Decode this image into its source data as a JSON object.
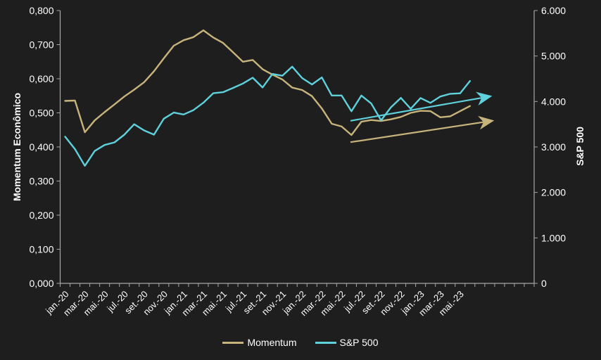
{
  "colors": {
    "background": "#1E1E1E",
    "text": "#FFFFFF",
    "axis_line": "#A6A6A6",
    "momentum_line": "#C7B47C",
    "sp500_line": "#5FD1DC"
  },
  "chart_data": {
    "type": "line",
    "title": "",
    "x": [
      "jan.-20",
      "fev.-20",
      "mar.-20",
      "abr.-20",
      "mai.-20",
      "jun.-20",
      "jul.-20",
      "ago.-20",
      "set.-20",
      "out.-20",
      "nov.-20",
      "dez.-20",
      "jan.-21",
      "fev.-21",
      "mar.-21",
      "abr.-21",
      "mai.-21",
      "jun.-21",
      "jul.-21",
      "ago.-21",
      "set.-21",
      "out.-21",
      "nov.-21",
      "dez.-21",
      "jan.-22",
      "fev.-22",
      "mar.-22",
      "abr.-22",
      "mai.-22",
      "jun.-22",
      "jul.-22",
      "ago.-22",
      "set.-22",
      "out.-22",
      "nov.-22",
      "dez.-22",
      "jan.-23",
      "fev.-23",
      "mar.-23",
      "abr.-23",
      "mai.-23",
      "jun.-23"
    ],
    "series": [
      {
        "name": "Momentum",
        "axis": "left",
        "color": "#C7B47C",
        "values": [
          0.535,
          0.536,
          0.443,
          0.478,
          0.502,
          0.525,
          0.548,
          0.568,
          0.59,
          0.622,
          0.66,
          0.697,
          0.713,
          0.722,
          0.742,
          0.721,
          0.705,
          0.678,
          0.65,
          0.655,
          0.628,
          0.612,
          0.598,
          0.574,
          0.567,
          0.549,
          0.513,
          0.468,
          0.46,
          0.435,
          0.474,
          0.479,
          0.476,
          0.481,
          0.488,
          0.5,
          0.506,
          0.505,
          0.487,
          0.49,
          0.505,
          0.52
        ]
      },
      {
        "name": "S&P 500",
        "axis": "right",
        "color": "#5FD1DC",
        "values": [
          3226,
          2954,
          2585,
          2912,
          3044,
          3100,
          3271,
          3500,
          3363,
          3270,
          3622,
          3756,
          3714,
          3811,
          3973,
          4181,
          4204,
          4298,
          4395,
          4523,
          4308,
          4605,
          4567,
          4766,
          4516,
          4374,
          4530,
          4132,
          4132,
          3785,
          4130,
          3955,
          3586,
          3872,
          4080,
          3840,
          4077,
          3970,
          4109,
          4169,
          4180,
          4450
        ]
      }
    ],
    "annotations": [
      {
        "type": "trend-arrow",
        "name": "sp500-trend-arrow",
        "axis": "right",
        "color": "#5FD1DC",
        "from": {
          "month_index": 28.9,
          "value": 3575
        },
        "to": {
          "month_index": 43.1,
          "value": 4115
        }
      },
      {
        "type": "trend-arrow",
        "name": "momentum-trend-arrow",
        "axis": "left",
        "color": "#C7B47C",
        "from": {
          "month_index": 28.9,
          "value": 0.414
        },
        "to": {
          "month_index": 43.3,
          "value": 0.477
        }
      }
    ],
    "left_axis": {
      "label": "Momentum Econômico",
      "min": 0,
      "max": 0.8,
      "tick_step": 0.1,
      "tick_labels": [
        "0,000",
        "0,100",
        "0,200",
        "0,300",
        "0,400",
        "0,500",
        "0,600",
        "0,700",
        "0,800"
      ]
    },
    "right_axis": {
      "label": "S&P 500",
      "min": 0,
      "max": 6000,
      "tick_step": 1000,
      "tick_labels": [
        "0",
        "1.000",
        "2.000",
        "3.000",
        "4.000",
        "5.000",
        "6.000"
      ]
    },
    "x_axis": {
      "slots": 48,
      "label_every": 2,
      "label_rotation_deg": -45
    },
    "legend": [
      {
        "label": "Momentum",
        "color": "#C7B47C"
      },
      {
        "label": "S&P 500",
        "color": "#5FD1DC"
      }
    ],
    "layout": {
      "grid": false,
      "legend_position": "bottom"
    }
  }
}
